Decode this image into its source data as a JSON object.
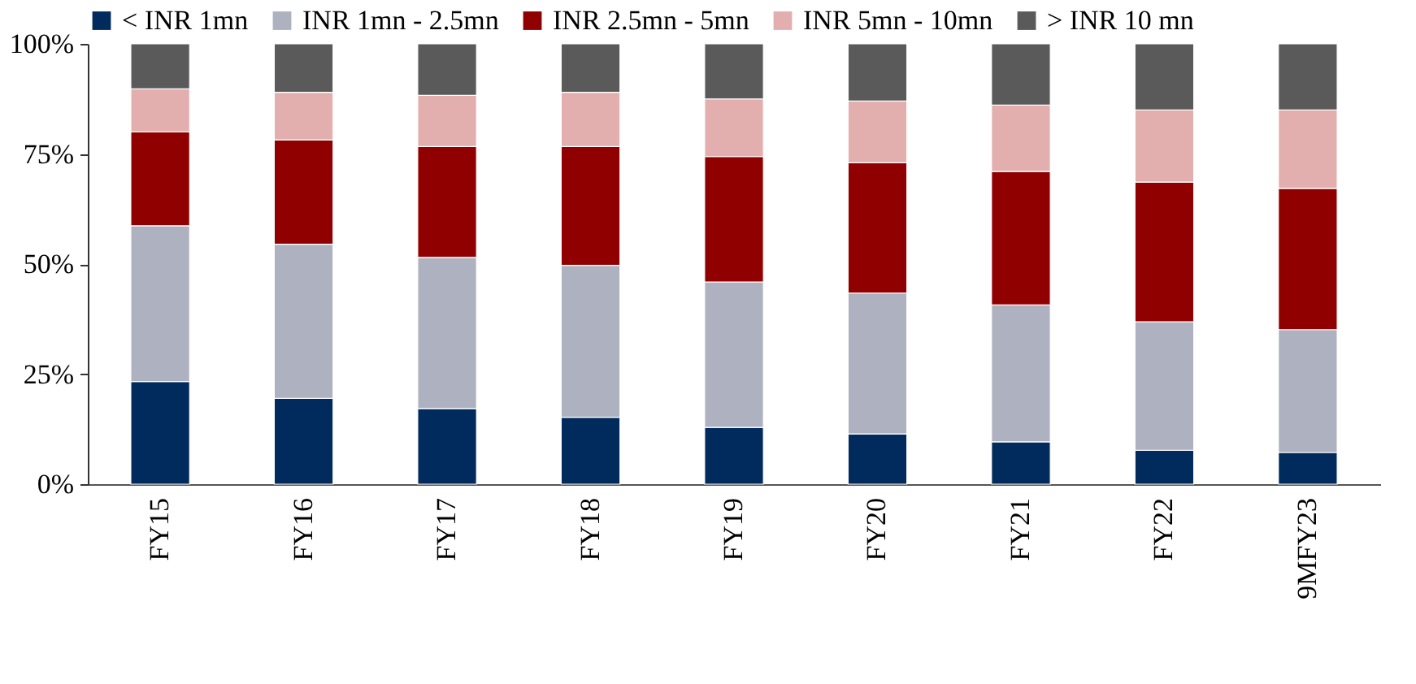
{
  "chart_data": {
    "type": "bar",
    "stacked": true,
    "legend": "top",
    "grid": false,
    "categories": [
      "FY15",
      "FY16",
      "FY17",
      "FY18",
      "FY19",
      "FY20",
      "FY21",
      "FY22",
      "9MFY23"
    ],
    "series": [
      {
        "name": "< INR 1mn",
        "color": "#002b5c",
        "values": [
          23.3,
          19.5,
          17.2,
          15.2,
          12.9,
          11.4,
          9.6,
          7.7,
          7.2
        ]
      },
      {
        "name": "INR 1mn - 2.5mn",
        "color": "#aeb1bf",
        "values": [
          35.4,
          35.0,
          34.3,
          34.5,
          33.0,
          32.0,
          31.1,
          29.2,
          27.9
        ]
      },
      {
        "name": "INR 2.5mn - 5mn",
        "color": "#900000",
        "values": [
          21.3,
          23.7,
          25.2,
          27.0,
          28.5,
          29.6,
          30.3,
          31.7,
          32.1
        ]
      },
      {
        "name": "INR 5mn - 10mn",
        "color": "#e3aeae",
        "values": [
          9.8,
          10.8,
          11.6,
          12.3,
          13.1,
          14.0,
          15.1,
          16.4,
          17.8
        ]
      },
      {
        "name": "> INR 10 mn",
        "color": "#5a5a5a",
        "values": [
          10.2,
          11.0,
          11.7,
          11.0,
          12.5,
          13.0,
          13.9,
          15.0,
          15.0
        ]
      }
    ],
    "ylim": [
      0,
      100
    ],
    "yticks": [
      {
        "value": 0,
        "label": "0%"
      },
      {
        "value": 25,
        "label": "25%"
      },
      {
        "value": 50,
        "label": "50%"
      },
      {
        "value": 75,
        "label": "75%"
      },
      {
        "value": 100,
        "label": "100%"
      }
    ]
  }
}
